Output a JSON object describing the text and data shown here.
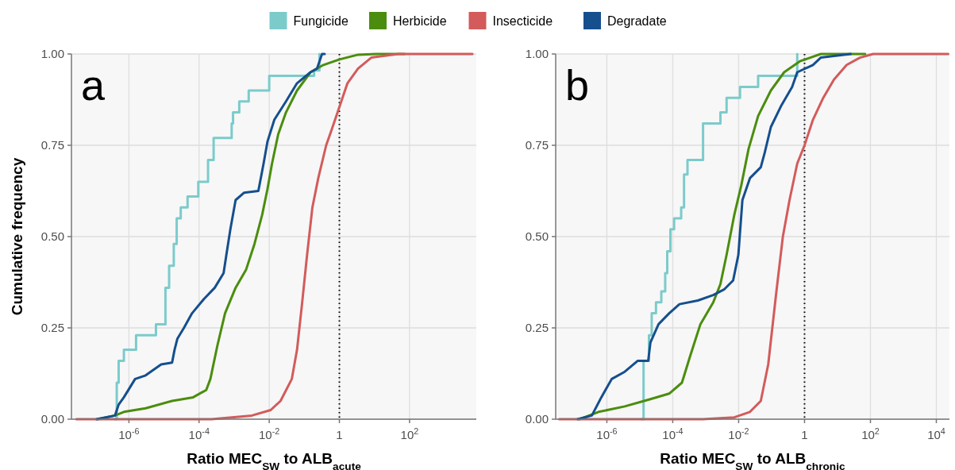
{
  "chart_data": [
    {
      "type": "line",
      "xlabel": "Ratio MEC$_{SW}$ to ALB$_{acute}$",
      "ylabel": "Cumulative frequency",
      "log": "x",
      "grid": true,
      "legend": "top",
      "line_style": "solid",
      "xlim": [
        2.3e-08,
        8000
      ],
      "xticks": [
        {
          "value": 1e-06,
          "label": "10$^{-6}$"
        },
        {
          "value": 0.0001,
          "label": "10$^{-4}$"
        },
        {
          "value": 0.01,
          "label": "10$^{-2}$"
        },
        {
          "value": 1,
          "label": "1"
        },
        {
          "value": 100,
          "label": "10$^{2}$"
        }
      ],
      "ylim": [
        0,
        1
      ],
      "yticks": [
        {
          "value": 0,
          "label": "0.00"
        },
        {
          "value": 0.25,
          "label": "0.25"
        },
        {
          "value": 0.5,
          "label": "0.50"
        },
        {
          "value": 0.75,
          "label": "0.75"
        },
        {
          "value": 1,
          "label": "1.00"
        }
      ],
      "ref_lines": [
        {
          "axis": "x",
          "value": 1,
          "color": "#000000",
          "line_style": "dotted"
        }
      ],
      "annotations": [
        "a"
      ],
      "series": [
        {
          "name": "Fungicide",
          "type": "step",
          "color": "#7ccbcb",
          "x": [
            4e-07,
            4.5e-07,
            5.1e-07,
            7.2e-07,
            1.6e-06,
            5.9e-06,
            1.1e-05,
            1.4e-05,
            1.9e-05,
            2.3e-05,
            3e-05,
            4.7e-05,
            9.5e-05,
            0.00018,
            0.00026,
            0.00085,
            0.00093,
            0.0014,
            0.0026,
            0.01,
            0.19,
            0.27
          ],
          "values": [
            0,
            0.1,
            0.16,
            0.19,
            0.23,
            0.26,
            0.36,
            0.42,
            0.48,
            0.55,
            0.58,
            0.61,
            0.65,
            0.71,
            0.77,
            0.81,
            0.84,
            0.87,
            0.9,
            0.94,
            0.955,
            1.0
          ]
        },
        {
          "name": "Herbicide",
          "color": "#4b8d0e",
          "x": [
            1.3e-07,
            4e-07,
            7.2e-07,
            3e-06,
            1.7e-05,
            6.8e-05,
            0.00016,
            0.00021,
            0.00033,
            0.00055,
            0.0011,
            0.0022,
            0.0038,
            0.0063,
            0.0089,
            0.012,
            0.018,
            0.03,
            0.062,
            0.15,
            0.35,
            1,
            3.4,
            11,
            72
          ],
          "values": [
            0,
            0.01,
            0.02,
            0.03,
            0.05,
            0.06,
            0.08,
            0.11,
            0.2,
            0.29,
            0.36,
            0.41,
            0.48,
            0.56,
            0.63,
            0.7,
            0.78,
            0.84,
            0.9,
            0.95,
            0.97,
            0.985,
            0.998,
            1.0,
            1.0
          ]
        },
        {
          "name": "Insecticide",
          "color": "#d35b5b",
          "x": [
            3.2e-08,
            0.00023,
            0.0032,
            0.011,
            0.021,
            0.044,
            0.062,
            0.087,
            0.12,
            0.17,
            0.25,
            0.42,
            0.59,
            1,
            1.7,
            3.4,
            8.1,
            47,
            6200
          ],
          "values": [
            0,
            0,
            0.01,
            0.025,
            0.05,
            0.11,
            0.19,
            0.32,
            0.45,
            0.58,
            0.66,
            0.75,
            0.79,
            0.855,
            0.92,
            0.96,
            0.99,
            1.0,
            1.0
          ]
        },
        {
          "name": "Degradate",
          "color": "#154f8e",
          "x": [
            1.2e-07,
            4e-07,
            5.1e-07,
            7.2e-07,
            1.5e-06,
            3e-06,
            8.3e-06,
            1.7e-05,
            2e-05,
            2.4e-05,
            3.7e-05,
            6.3e-05,
            0.00014,
            0.00028,
            0.0005,
            0.0006,
            0.00078,
            0.0011,
            0.0019,
            0.0049,
            0.0069,
            0.0089,
            0.014,
            0.03,
            0.062,
            0.15,
            0.23,
            0.32,
            0.38
          ],
          "values": [
            0,
            0.01,
            0.04,
            0.06,
            0.11,
            0.12,
            0.15,
            0.155,
            0.19,
            0.22,
            0.25,
            0.29,
            0.33,
            0.36,
            0.4,
            0.45,
            0.52,
            0.6,
            0.62,
            0.625,
            0.7,
            0.76,
            0.82,
            0.87,
            0.92,
            0.95,
            0.96,
            1.0,
            1.0
          ]
        }
      ]
    },
    {
      "type": "line",
      "xlabel": "Ratio MEC$_{SW}$ to ALB$_{chronic}$",
      "log": "x",
      "grid": true,
      "line_style": "solid",
      "xlim": [
        2.8e-08,
        25000
      ],
      "xticks": [
        {
          "value": 1e-06,
          "label": "10$^{-6}$"
        },
        {
          "value": 0.0001,
          "label": "10$^{-4}$"
        },
        {
          "value": 0.01,
          "label": "10$^{-2}$"
        },
        {
          "value": 1,
          "label": "1"
        },
        {
          "value": 100,
          "label": "10$^{2}$"
        },
        {
          "value": 10000,
          "label": "10$^{4}$"
        }
      ],
      "ylim": [
        0,
        1
      ],
      "yticks": [
        {
          "value": 0,
          "label": "0.00"
        },
        {
          "value": 0.25,
          "label": "0.25"
        },
        {
          "value": 0.5,
          "label": "0.50"
        },
        {
          "value": 0.75,
          "label": "0.75"
        },
        {
          "value": 1,
          "label": "1.00"
        }
      ],
      "ref_lines": [
        {
          "axis": "x",
          "value": 1,
          "color": "#000000",
          "line_style": "dotted"
        }
      ],
      "annotations": [
        "b"
      ],
      "series": [
        {
          "type": "step",
          "color": "#7ccbcb",
          "x": [
            1.1e-05,
            1.3e-05,
            1.9e-05,
            2.3e-05,
            3.1e-05,
            4.5e-05,
            5.9e-05,
            6.8e-05,
            8.5e-05,
            0.00011,
            0.00018,
            0.00022,
            0.00028,
            0.00083,
            0.0028,
            0.0043,
            0.011,
            0.039,
            0.6
          ],
          "values": [
            0,
            0.16,
            0.23,
            0.29,
            0.32,
            0.35,
            0.4,
            0.46,
            0.52,
            0.55,
            0.58,
            0.67,
            0.71,
            0.81,
            0.84,
            0.88,
            0.91,
            0.94,
            1.0
          ]
        },
        {
          "color": "#4b8d0e",
          "x": [
            1.5e-07,
            5.6e-07,
            3.5e-06,
            2.1e-05,
            7.8e-05,
            0.00019,
            0.00033,
            0.00069,
            0.0017,
            0.0028,
            0.0043,
            0.0074,
            0.012,
            0.02,
            0.039,
            0.095,
            0.24,
            0.72,
            3.1,
            69
          ],
          "values": [
            0,
            0.02,
            0.035,
            0.055,
            0.07,
            0.1,
            0.17,
            0.26,
            0.32,
            0.37,
            0.45,
            0.56,
            0.64,
            0.74,
            0.83,
            0.9,
            0.95,
            0.98,
            1.0,
            1.0
          ]
        },
        {
          "color": "#d35b5b",
          "x": [
            3.6e-08,
            0.00083,
            0.0074,
            0.022,
            0.047,
            0.079,
            0.14,
            0.22,
            0.35,
            0.6,
            1,
            1.8,
            3.7,
            7.8,
            19,
            48,
            120,
            23000
          ],
          "values": [
            0,
            0,
            0.005,
            0.02,
            0.05,
            0.15,
            0.35,
            0.5,
            0.6,
            0.7,
            0.75,
            0.82,
            0.88,
            0.93,
            0.97,
            0.99,
            1.0,
            1.0
          ]
        },
        {
          "color": "#154f8e",
          "x": [
            1.3e-07,
            3.5e-07,
            6.8e-07,
            1.4e-06,
            3.5e-06,
            8.7e-06,
            1.8e-05,
            2.1e-05,
            3.7e-05,
            7.8e-05,
            0.00016,
            0.00058,
            0.0017,
            0.0036,
            0.0068,
            0.0098,
            0.013,
            0.022,
            0.047,
            0.062,
            0.095,
            0.2,
            0.42,
            0.6,
            1.8,
            3.1,
            25
          ],
          "values": [
            0,
            0.01,
            0.06,
            0.11,
            0.13,
            0.16,
            0.16,
            0.21,
            0.26,
            0.29,
            0.315,
            0.325,
            0.34,
            0.355,
            0.38,
            0.45,
            0.6,
            0.66,
            0.69,
            0.73,
            0.8,
            0.86,
            0.91,
            0.95,
            0.97,
            0.99,
            1.0
          ]
        }
      ]
    }
  ]
}
